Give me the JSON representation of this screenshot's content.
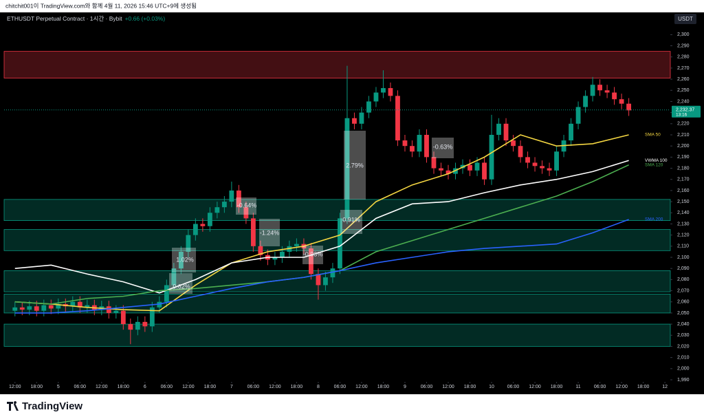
{
  "header": {
    "watermark": "chitchit001이 TradingView.com와 함께 4월 11, 2026 15:46 UTC+9에 생성됨",
    "symbol": "ETHUSDT Perpetual Contract · 1시간 · Bybit",
    "change": "+0.66 (+0.03%)",
    "currency": "USDT"
  },
  "footer": {
    "logo": "TradingView"
  },
  "chart_data": {
    "type": "candlestick",
    "up_color": "#089981",
    "down_color": "#f23645",
    "x": [
      0,
      2,
      4,
      6,
      8,
      10,
      12,
      14,
      16,
      18,
      20,
      22,
      24,
      26,
      28,
      30,
      32,
      34,
      36,
      38,
      40,
      42,
      44,
      46,
      48,
      50,
      52,
      54,
      56,
      58,
      60,
      62,
      64,
      66,
      68,
      70,
      72,
      74,
      76,
      78,
      80,
      82,
      84,
      86,
      88,
      90,
      92,
      94,
      96,
      98,
      100,
      102,
      104,
      106,
      108,
      110,
      112,
      114,
      116,
      118,
      120,
      122,
      124,
      126,
      128,
      130,
      132,
      134,
      136,
      138,
      140,
      142,
      144,
      146,
      148,
      150,
      152,
      154,
      156,
      158,
      160,
      162,
      164,
      166,
      168,
      170
    ],
    "open": [
      2052,
      2055,
      2053,
      2056,
      2052,
      2057,
      2054,
      2058,
      2056,
      2060,
      2055,
      2057,
      2053,
      2056,
      2050,
      2052,
      2040,
      2035,
      2042,
      2038,
      2055,
      2060,
      2075,
      2090,
      2105,
      2120,
      2130,
      2128,
      2140,
      2145,
      2150,
      2160,
      2145,
      2135,
      2110,
      2102,
      2098,
      2100,
      2105,
      2110,
      2112,
      2108,
      2085,
      2075,
      2082,
      2090,
      2135,
      2225,
      2220,
      2230,
      2240,
      2248,
      2252,
      2245,
      2205,
      2200,
      2195,
      2210,
      2190,
      2180,
      2178,
      2175,
      2180,
      2183,
      2178,
      2185,
      2170,
      2210,
      2220,
      2205,
      2200,
      2190,
      2185,
      2182,
      2180,
      2178,
      2195,
      2205,
      2220,
      2235,
      2245,
      2255,
      2250,
      2248,
      2242,
      2238
    ],
    "high": [
      2060,
      2060,
      2061,
      2061,
      2062,
      2062,
      2063,
      2063,
      2065,
      2065,
      2062,
      2062,
      2061,
      2061,
      2057,
      2057,
      2045,
      2047,
      2047,
      2060,
      2065,
      2080,
      2095,
      2110,
      2125,
      2135,
      2135,
      2145,
      2150,
      2155,
      2168,
      2165,
      2150,
      2140,
      2115,
      2107,
      2105,
      2110,
      2115,
      2117,
      2117,
      2113,
      2090,
      2087,
      2095,
      2140,
      2272,
      2230,
      2235,
      2245,
      2253,
      2268,
      2257,
      2250,
      2210,
      2205,
      2215,
      2215,
      2195,
      2185,
      2183,
      2185,
      2188,
      2188,
      2190,
      2190,
      2228,
      2225,
      2225,
      2210,
      2205,
      2195,
      2190,
      2187,
      2185,
      2200,
      2210,
      2225,
      2240,
      2250,
      2262,
      2260,
      2255,
      2253,
      2247,
      2243
    ],
    "low": [
      2047,
      2048,
      2048,
      2047,
      2047,
      2049,
      2049,
      2051,
      2051,
      2050,
      2050,
      2048,
      2048,
      2045,
      2045,
      2035,
      2022,
      2030,
      2033,
      2033,
      2050,
      2055,
      2070,
      2085,
      2100,
      2115,
      2123,
      2123,
      2135,
      2140,
      2145,
      2140,
      2130,
      2105,
      2097,
      2093,
      2093,
      2095,
      2100,
      2105,
      2103,
      2080,
      2062,
      2070,
      2077,
      2085,
      2130,
      2215,
      2215,
      2225,
      2235,
      2243,
      2240,
      2200,
      2195,
      2190,
      2190,
      2185,
      2175,
      2173,
      2170,
      2170,
      2175,
      2173,
      2173,
      2165,
      2165,
      2205,
      2200,
      2195,
      2185,
      2180,
      2177,
      2175,
      2173,
      2173,
      2190,
      2200,
      2215,
      2230,
      2240,
      2245,
      2243,
      2237,
      2233,
      2227
    ],
    "close": [
      2055,
      2053,
      2056,
      2052,
      2057,
      2054,
      2058,
      2056,
      2060,
      2055,
      2057,
      2053,
      2056,
      2050,
      2052,
      2040,
      2035,
      2042,
      2038,
      2055,
      2060,
      2075,
      2090,
      2105,
      2120,
      2130,
      2128,
      2140,
      2145,
      2150,
      2160,
      2145,
      2135,
      2110,
      2102,
      2098,
      2100,
      2105,
      2110,
      2112,
      2108,
      2085,
      2075,
      2082,
      2090,
      2135,
      2225,
      2220,
      2230,
      2240,
      2248,
      2252,
      2245,
      2205,
      2200,
      2195,
      2210,
      2190,
      2180,
      2178,
      2175,
      2180,
      2183,
      2178,
      2185,
      2170,
      2210,
      2220,
      2205,
      2200,
      2190,
      2185,
      2182,
      2180,
      2178,
      2195,
      2205,
      2220,
      2235,
      2245,
      2255,
      2250,
      2248,
      2242,
      2238,
      2232
    ],
    "line_x": [
      0,
      10,
      20,
      30,
      40,
      50,
      60,
      70,
      80,
      90,
      100,
      110,
      120,
      130,
      140,
      150,
      160,
      170
    ],
    "lines": [
      {
        "name": "SMA 50",
        "color": "#f5d742",
        "values": [
          2060,
          2058,
          2055,
          2053,
          2052,
          2075,
          2095,
          2105,
          2110,
          2120,
          2150,
          2165,
          2175,
          2190,
          2210,
          2200,
          2202,
          2210
        ]
      },
      {
        "name": "VWMA 100",
        "color": "#ffffff",
        "values": [
          2090,
          2093,
          2085,
          2078,
          2068,
          2080,
          2095,
          2100,
          2100,
          2110,
          2135,
          2148,
          2150,
          2158,
          2165,
          2170,
          2177,
          2187
        ]
      },
      {
        "name": "SMA 120",
        "color": "#4caf50",
        "values": [
          2060,
          2058,
          2063,
          2065,
          2070,
          2072,
          2075,
          2078,
          2082,
          2088,
          2105,
          2115,
          2125,
          2135,
          2145,
          2155,
          2168,
          2183
        ]
      },
      {
        "name": "SMA 200",
        "color": "#2962ff",
        "values": [
          2050,
          2050,
          2052,
          2055,
          2058,
          2065,
          2072,
          2078,
          2082,
          2088,
          2095,
          2100,
          2105,
          2108,
          2110,
          2112,
          2122,
          2134
        ]
      }
    ],
    "zones": [
      {
        "low": 2261,
        "high": 2285,
        "color": "#f23645"
      },
      {
        "low": 2133,
        "high": 2152,
        "color": "#089981"
      },
      {
        "low": 2106,
        "high": 2125,
        "color": "#089981"
      },
      {
        "low": 2069,
        "high": 2088,
        "color": "#089981"
      },
      {
        "low": 2050,
        "high": 2067,
        "color": "#089981"
      },
      {
        "low": 2020,
        "high": 2040,
        "color": "#089981"
      }
    ],
    "last_price": {
      "value": 2232.37,
      "label": "2,232.37"
    },
    "countdown": "13:16",
    "annotations": [
      "1.02%",
      "0.62%",
      "-0.64%",
      "-1.24%",
      "-0.93%",
      "2.79%",
      "0.91%",
      "-0.63%"
    ],
    "xlim": [
      -3,
      181.5
    ],
    "xticks": [
      {
        "value": 0,
        "label": "12:00"
      },
      {
        "value": 6,
        "label": "18:00"
      },
      {
        "value": 12,
        "label": "5"
      },
      {
        "value": 18,
        "label": "06:00"
      },
      {
        "value": 24,
        "label": "12:00"
      },
      {
        "value": 30,
        "label": "18:00"
      },
      {
        "value": 36,
        "label": "6"
      },
      {
        "value": 42,
        "label": "06:00"
      },
      {
        "value": 48,
        "label": "12:00"
      },
      {
        "value": 54,
        "label": "18:00"
      },
      {
        "value": 60,
        "label": "7"
      },
      {
        "value": 66,
        "label": "06:00"
      },
      {
        "value": 72,
        "label": "12:00"
      },
      {
        "value": 78,
        "label": "18:00"
      },
      {
        "value": 84,
        "label": "8"
      },
      {
        "value": 90,
        "label": "06:00"
      },
      {
        "value": 96,
        "label": "12:00"
      },
      {
        "value": 102,
        "label": "18:00"
      },
      {
        "value": 108,
        "label": "9"
      },
      {
        "value": 114,
        "label": "06:00"
      },
      {
        "value": 120,
        "label": "12:00"
      },
      {
        "value": 126,
        "label": "18:00"
      },
      {
        "value": 132,
        "label": "10"
      },
      {
        "value": 138,
        "label": "06:00"
      },
      {
        "value": 144,
        "label": "12:00"
      },
      {
        "value": 150,
        "label": "18:00"
      },
      {
        "value": 156,
        "label": "11"
      },
      {
        "value": 162,
        "label": "06:00"
      },
      {
        "value": 168,
        "label": "12:00"
      },
      {
        "value": 174,
        "label": "18:00"
      },
      {
        "value": 180,
        "label": "12"
      }
    ],
    "ylim": [
      1990,
      2320
    ],
    "yticks": [
      {
        "value": 1990,
        "label": "1,990"
      },
      {
        "value": 2000,
        "label": "2,000"
      },
      {
        "value": 2010,
        "label": "2,010"
      },
      {
        "value": 2020,
        "label": "2,020"
      },
      {
        "value": 2030,
        "label": "2,030"
      },
      {
        "value": 2040,
        "label": "2,040"
      },
      {
        "value": 2050,
        "label": "2,050"
      },
      {
        "value": 2060,
        "label": "2,060"
      },
      {
        "value": 2070,
        "label": "2,070"
      },
      {
        "value": 2080,
        "label": "2,080"
      },
      {
        "value": 2090,
        "label": "2,090"
      },
      {
        "value": 2100,
        "label": "2,100"
      },
      {
        "value": 2110,
        "label": "2,110"
      },
      {
        "value": 2120,
        "label": "2,120"
      },
      {
        "value": 2130,
        "label": "2,130"
      },
      {
        "value": 2140,
        "label": "2,140"
      },
      {
        "value": 2150,
        "label": "2,150"
      },
      {
        "value": 2160,
        "label": "2,160"
      },
      {
        "value": 2170,
        "label": "2,170"
      },
      {
        "value": 2180,
        "label": "2,180"
      },
      {
        "value": 2190,
        "label": "2,190"
      },
      {
        "value": 2200,
        "label": "2,200"
      },
      {
        "value": 2210,
        "label": "2,210"
      },
      {
        "value": 2220,
        "label": "2,220"
      },
      {
        "value": 2230,
        "label": "2,230"
      },
      {
        "value": 2240,
        "label": "2,240"
      },
      {
        "value": 2250,
        "label": "2,250"
      },
      {
        "value": 2260,
        "label": "2,260"
      },
      {
        "value": 2270,
        "label": "2,270"
      },
      {
        "value": 2280,
        "label": "2,280"
      },
      {
        "value": 2290,
        "label": "2,290"
      },
      {
        "value": 2300,
        "label": "2,300"
      }
    ],
    "grid": false
  }
}
